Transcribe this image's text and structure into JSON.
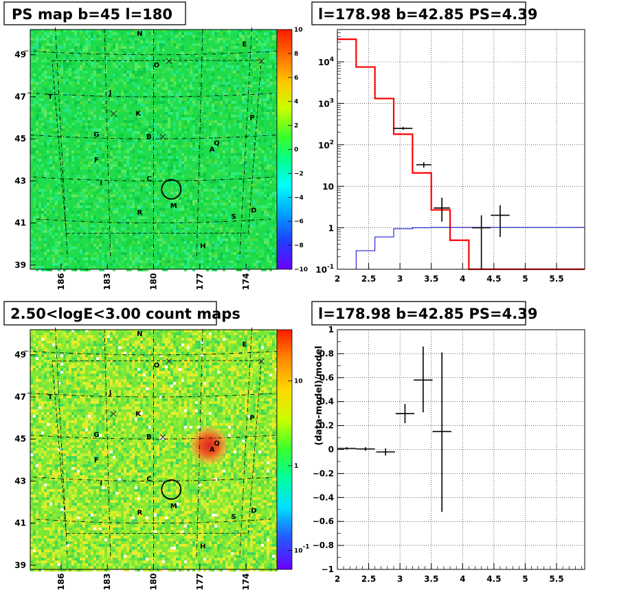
{
  "chart_data": [
    {
      "type": "heatmap",
      "title": "PS map b=45 l=180",
      "xlabel": "",
      "ylabel": "",
      "x_ticks": [
        "186",
        "183",
        "180",
        "177",
        "174"
      ],
      "y_ticks": [
        "49",
        "47",
        "45",
        "43",
        "41",
        "39"
      ],
      "xlim": [
        188.0,
        172.0
      ],
      "ylim": [
        38.8,
        50.2
      ],
      "colorbar": {
        "scale": "linear",
        "min": -10,
        "max": 10,
        "ticks": [
          "10",
          "8",
          "6",
          "4",
          "2",
          "0",
          "−2",
          "−4",
          "−6",
          "−8",
          "−10"
        ]
      },
      "background_color": "#1fdc4c",
      "source_labels": [
        {
          "t": "N",
          "l": 180.9,
          "b": 49.9
        },
        {
          "t": "E",
          "l": 174.1,
          "b": 49.4
        },
        {
          "t": "O",
          "l": 179.8,
          "b": 48.4
        },
        {
          "t": "T",
          "l": 186.7,
          "b": 46.9
        },
        {
          "t": "J",
          "l": 182.8,
          "b": 47.1
        },
        {
          "t": "K",
          "l": 181.0,
          "b": 46.1
        },
        {
          "t": "P",
          "l": 173.6,
          "b": 45.9
        },
        {
          "t": "G",
          "l": 183.7,
          "b": 45.1
        },
        {
          "t": "B",
          "l": 180.3,
          "b": 45.0
        },
        {
          "t": "Q",
          "l": 175.9,
          "b": 44.7
        },
        {
          "t": "A",
          "l": 176.2,
          "b": 44.4
        },
        {
          "t": "F",
          "l": 183.7,
          "b": 43.9
        },
        {
          "t": "I",
          "l": 183.4,
          "b": 42.8
        },
        {
          "t": "C",
          "l": 180.3,
          "b": 43.0
        },
        {
          "t": "M",
          "l": 178.7,
          "b": 41.7
        },
        {
          "t": "R",
          "l": 180.9,
          "b": 41.4
        },
        {
          "t": "S",
          "l": 174.8,
          "b": 41.2
        },
        {
          "t": "D",
          "l": 173.5,
          "b": 41.5
        },
        {
          "t": "H",
          "l": 176.8,
          "b": 39.8
        }
      ],
      "crosses": [
        {
          "l": 179.0,
          "b": 48.7
        },
        {
          "l": 173.0,
          "b": 48.7
        },
        {
          "l": 182.6,
          "b": 46.2
        },
        {
          "l": 179.4,
          "b": 45.1
        }
      ],
      "circle": {
        "l": 178.85,
        "b": 42.6
      }
    },
    {
      "type": "line",
      "title": "l=178.98 b=42.85 PS=4.39",
      "xlabel": "",
      "ylabel": "",
      "xlim": [
        2,
        5.95
      ],
      "ylim": [
        0.1,
        60000
      ],
      "y_scale": "log",
      "x_ticks": [
        "2",
        "2.5",
        "3",
        "3.5",
        "4",
        "4.5",
        "5",
        "5.5"
      ],
      "y_ticks": [
        "10^4",
        "10^3",
        "10^2",
        "10",
        "1",
        "10^-1"
      ],
      "grid": true,
      "series": [
        {
          "color": "#ff0000",
          "style": "step",
          "edges": [
            2.0,
            2.3,
            2.6,
            2.9,
            3.2,
            3.5,
            3.8,
            4.1,
            4.4,
            5.95
          ],
          "values": [
            35000,
            7500,
            1300,
            180,
            21,
            2.7,
            0.5,
            0.1,
            0.1
          ]
        },
        {
          "color": "#0000cc",
          "style": "step",
          "edges": [
            2.0,
            2.3,
            2.6,
            2.9,
            3.2,
            3.5,
            3.8,
            4.1,
            4.4,
            5.95
          ],
          "values": [
            0.1,
            0.28,
            0.6,
            0.95,
            1.0,
            1.02,
            1.02,
            1.02,
            1.02
          ]
        },
        {
          "color": "#000000",
          "style": "errorbar",
          "points": [
            {
              "x": 3.05,
              "y": 250,
              "xerr": 0.15,
              "ylo": 230,
              "yhi": 270
            },
            {
              "x": 3.38,
              "y": 33,
              "xerr": 0.12,
              "ylo": 28,
              "yhi": 38
            },
            {
              "x": 3.67,
              "y": 3.0,
              "xerr": 0.13,
              "ylo": 1.4,
              "yhi": 5.3
            },
            {
              "x": 4.3,
              "y": 1.0,
              "xerr": 0.15,
              "ylo": 0.1,
              "yhi": 2.0
            },
            {
              "x": 4.6,
              "y": 2.0,
              "xerr": 0.15,
              "ylo": 0.6,
              "yhi": 3.5
            }
          ]
        }
      ]
    },
    {
      "type": "heatmap",
      "title": "2.50<logE<3.00 count maps",
      "xlabel": "",
      "ylabel": "",
      "x_ticks": [
        "186",
        "183",
        "180",
        "177",
        "174"
      ],
      "y_ticks": [
        "49",
        "47",
        "45",
        "43",
        "41",
        "39"
      ],
      "xlim": [
        188.0,
        172.0
      ],
      "ylim": [
        38.8,
        50.2
      ],
      "colorbar": {
        "scale": "log",
        "min": 0.06,
        "max": 40,
        "ticks": [
          "10",
          "1",
          "10^-1"
        ]
      },
      "background_color": "#7ee838",
      "hot_spot": {
        "l": 176.4,
        "b": 44.7,
        "color": "#d9261c"
      },
      "source_labels": [
        {
          "t": "N",
          "l": 180.9,
          "b": 49.9
        },
        {
          "t": "E",
          "l": 174.1,
          "b": 49.4
        },
        {
          "t": "O",
          "l": 179.8,
          "b": 48.4
        },
        {
          "t": "T",
          "l": 186.7,
          "b": 46.9
        },
        {
          "t": "J",
          "l": 182.8,
          "b": 47.1
        },
        {
          "t": "K",
          "l": 181.0,
          "b": 46.1
        },
        {
          "t": "P",
          "l": 173.6,
          "b": 45.9
        },
        {
          "t": "G",
          "l": 183.7,
          "b": 45.1
        },
        {
          "t": "B",
          "l": 180.3,
          "b": 45.0
        },
        {
          "t": "Q",
          "l": 175.9,
          "b": 44.7
        },
        {
          "t": "A",
          "l": 176.2,
          "b": 44.4
        },
        {
          "t": "F",
          "l": 183.7,
          "b": 43.9
        },
        {
          "t": "I",
          "l": 183.4,
          "b": 42.8
        },
        {
          "t": "C",
          "l": 180.3,
          "b": 43.0
        },
        {
          "t": "M",
          "l": 178.7,
          "b": 41.7
        },
        {
          "t": "R",
          "l": 180.9,
          "b": 41.4
        },
        {
          "t": "S",
          "l": 174.8,
          "b": 41.2
        },
        {
          "t": "D",
          "l": 173.5,
          "b": 41.5
        },
        {
          "t": "H",
          "l": 176.8,
          "b": 39.8
        }
      ],
      "crosses": [
        {
          "l": 179.0,
          "b": 48.7
        },
        {
          "l": 173.0,
          "b": 48.7
        },
        {
          "l": 182.6,
          "b": 46.2
        },
        {
          "l": 179.4,
          "b": 45.1
        }
      ],
      "circle": {
        "l": 178.85,
        "b": 42.6
      }
    },
    {
      "type": "scatter",
      "title": "l=178.98 b=42.85 PS=4.39",
      "xlabel": "",
      "ylabel": "(data-model)/model",
      "xlim": [
        2,
        5.95
      ],
      "ylim": [
        -1,
        1
      ],
      "x_ticks": [
        "2",
        "2.5",
        "3",
        "3.5",
        "4",
        "4.5",
        "5",
        "5.5"
      ],
      "y_ticks": [
        "1",
        "0.8",
        "0.6",
        "0.4",
        "0.2",
        "0",
        "−0.2",
        "−0.4",
        "−0.6",
        "−0.8",
        "−1"
      ],
      "grid": true,
      "series": [
        {
          "color": "#000000",
          "style": "errorbar",
          "points": [
            {
              "x": 2.15,
              "y": 0.01,
              "xerr": 0.15,
              "ylo": 0.0,
              "yhi": 0.02
            },
            {
              "x": 2.45,
              "y": 0.005,
              "xerr": 0.15,
              "ylo": -0.01,
              "yhi": 0.02
            },
            {
              "x": 2.77,
              "y": -0.02,
              "xerr": 0.15,
              "ylo": -0.05,
              "yhi": 0.01
            },
            {
              "x": 3.08,
              "y": 0.3,
              "xerr": 0.15,
              "ylo": 0.22,
              "yhi": 0.38
            },
            {
              "x": 3.37,
              "y": 0.58,
              "xerr": 0.15,
              "ylo": 0.31,
              "yhi": 0.86
            },
            {
              "x": 3.67,
              "y": 0.15,
              "xerr": 0.15,
              "ylo": -0.52,
              "yhi": 0.81
            }
          ]
        }
      ]
    }
  ]
}
